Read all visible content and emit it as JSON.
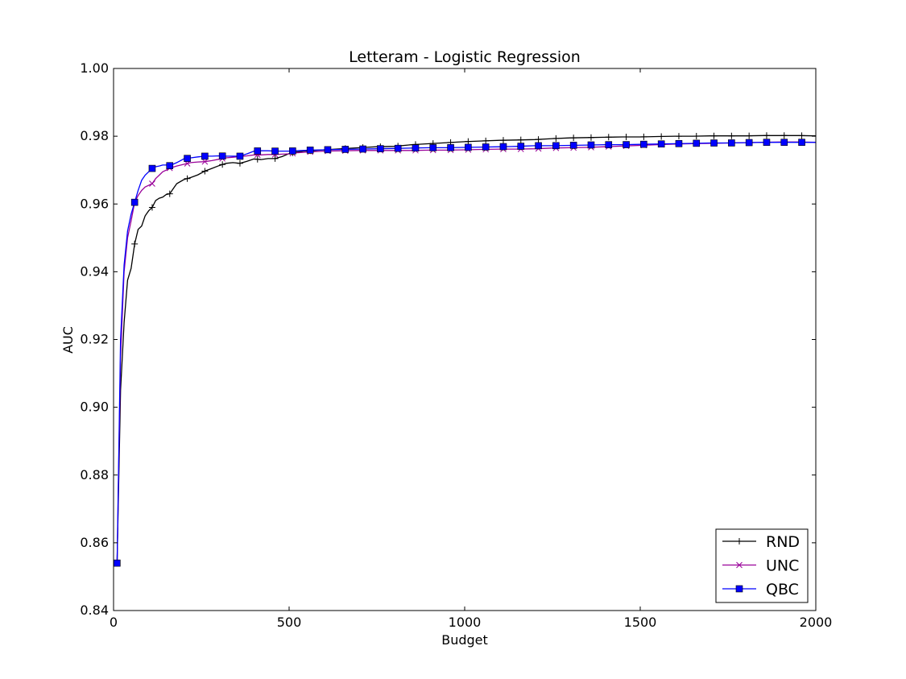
{
  "chart_data": {
    "type": "line",
    "title": "Letteram - Logistic Regression",
    "xlabel": "Budget",
    "ylabel": "AUC",
    "xlim": [
      0,
      2000
    ],
    "ylim": [
      0.84,
      1.0
    ],
    "xticks": [
      0,
      500,
      1000,
      1500,
      2000
    ],
    "yticks": [
      0.84,
      0.86,
      0.88,
      0.9,
      0.92,
      0.94,
      0.96,
      0.98,
      1.0
    ],
    "xtick_labels": [
      "0",
      "500",
      "1000",
      "1500",
      "2000"
    ],
    "ytick_labels": [
      "0.84",
      "0.86",
      "0.88",
      "0.90",
      "0.92",
      "0.94",
      "0.96",
      "0.98",
      "1.00"
    ],
    "grid": false,
    "legend_position": "bottom-right",
    "series": [
      {
        "name": "RND",
        "color": "#000000",
        "marker": "plus",
        "x": [
          10,
          20,
          30,
          40,
          50,
          60,
          70,
          80,
          90,
          100,
          110,
          120,
          130,
          140,
          150,
          160,
          170,
          180,
          200,
          220,
          240,
          260,
          280,
          300,
          320,
          340,
          360,
          380,
          400,
          420,
          440,
          460,
          480,
          500,
          520,
          540,
          560,
          600,
          650,
          700,
          750,
          800,
          850,
          900,
          950,
          1000,
          1050,
          1100,
          1150,
          1200,
          1250,
          1300,
          1350,
          1400,
          1450,
          1500,
          1550,
          1600,
          1650,
          1700,
          1750,
          1800,
          1850,
          1900,
          1950,
          2000
        ],
        "y": [
          0.854,
          0.905,
          0.925,
          0.9375,
          0.941,
          0.9482,
          0.9525,
          0.9535,
          0.9565,
          0.958,
          0.959,
          0.961,
          0.9617,
          0.962,
          0.9628,
          0.963,
          0.9645,
          0.966,
          0.9672,
          0.9678,
          0.9686,
          0.9697,
          0.9705,
          0.9713,
          0.972,
          0.9722,
          0.972,
          0.9726,
          0.9733,
          0.9731,
          0.9734,
          0.9734,
          0.974,
          0.9749,
          0.9753,
          0.9756,
          0.9757,
          0.976,
          0.9763,
          0.9766,
          0.9769,
          0.977,
          0.9775,
          0.9778,
          0.9781,
          0.9784,
          0.9786,
          0.9788,
          0.9789,
          0.979,
          0.9793,
          0.9795,
          0.9796,
          0.9797,
          0.9798,
          0.9798,
          0.9799,
          0.98,
          0.98,
          0.9801,
          0.9801,
          0.9801,
          0.9802,
          0.9802,
          0.9802,
          0.9801
        ]
      },
      {
        "name": "UNC",
        "color": "#990099",
        "marker": "x",
        "x": [
          10,
          20,
          30,
          40,
          50,
          60,
          70,
          80,
          90,
          100,
          110,
          120,
          130,
          140,
          150,
          160,
          180,
          200,
          220,
          240,
          260,
          280,
          300,
          320,
          340,
          360,
          380,
          400,
          420,
          440,
          460,
          480,
          500,
          520,
          560,
          600,
          650,
          700,
          750,
          800,
          850,
          900,
          950,
          1000,
          1050,
          1100,
          1150,
          1200,
          1250,
          1300,
          1350,
          1400,
          1450,
          1500,
          1550,
          1600,
          1650,
          1700,
          1750,
          1800,
          1850,
          1900,
          1950,
          2000
        ],
        "y": [
          0.854,
          0.915,
          0.94,
          0.95,
          0.955,
          0.9605,
          0.9625,
          0.964,
          0.965,
          0.9655,
          0.966,
          0.9675,
          0.9685,
          0.9695,
          0.97,
          0.9706,
          0.9712,
          0.9717,
          0.9722,
          0.9724,
          0.9725,
          0.9728,
          0.9732,
          0.9736,
          0.9738,
          0.974,
          0.9742,
          0.9745,
          0.9745,
          0.9746,
          0.9746,
          0.9747,
          0.9748,
          0.9751,
          0.9754,
          0.9756,
          0.9757,
          0.9758,
          0.9758,
          0.9758,
          0.9758,
          0.9759,
          0.9759,
          0.976,
          0.9761,
          0.9762,
          0.9762,
          0.9763,
          0.9765,
          0.9766,
          0.9767,
          0.9769,
          0.9771,
          0.9773,
          0.9775,
          0.9777,
          0.9778,
          0.9779,
          0.978,
          0.9781,
          0.9782,
          0.9783,
          0.9783,
          0.9782
        ]
      },
      {
        "name": "QBC",
        "color": "#0000ff",
        "marker": "square",
        "x": [
          10,
          20,
          30,
          40,
          50,
          60,
          70,
          80,
          90,
          100,
          110,
          120,
          130,
          140,
          150,
          160,
          180,
          200,
          220,
          240,
          260,
          280,
          300,
          320,
          340,
          360,
          380,
          400,
          420,
          440,
          460,
          480,
          500,
          520,
          560,
          600,
          650,
          700,
          750,
          800,
          850,
          900,
          950,
          1000,
          1050,
          1100,
          1150,
          1200,
          1250,
          1300,
          1350,
          1400,
          1450,
          1500,
          1550,
          1600,
          1650,
          1700,
          1750,
          1800,
          1850,
          1900,
          1950,
          2000
        ],
        "y": [
          0.854,
          0.92,
          0.942,
          0.952,
          0.957,
          0.9605,
          0.964,
          0.967,
          0.9685,
          0.9695,
          0.9705,
          0.971,
          0.9712,
          0.9715,
          0.9715,
          0.9713,
          0.9722,
          0.9733,
          0.9736,
          0.9739,
          0.9741,
          0.9741,
          0.9742,
          0.9741,
          0.9741,
          0.9741,
          0.9748,
          0.9756,
          0.9757,
          0.9757,
          0.9756,
          0.9756,
          0.9756,
          0.9757,
          0.9759,
          0.976,
          0.9761,
          0.9762,
          0.9763,
          0.9764,
          0.9765,
          0.9766,
          0.9766,
          0.9767,
          0.9768,
          0.9769,
          0.977,
          0.9772,
          0.9772,
          0.9773,
          0.9774,
          0.9775,
          0.9775,
          0.9776,
          0.9777,
          0.9778,
          0.9779,
          0.978,
          0.978,
          0.9781,
          0.9782,
          0.9782,
          0.9782,
          0.9782
        ]
      }
    ],
    "marker_x": [
      10,
      60,
      110,
      160,
      210,
      260,
      310,
      360,
      410,
      460,
      510,
      560,
      610,
      660,
      710,
      760,
      810,
      860,
      910,
      960,
      1010,
      1060,
      1110,
      1160,
      1210,
      1260,
      1310,
      1360,
      1410,
      1460,
      1510,
      1560,
      1610,
      1660,
      1710,
      1760,
      1810,
      1860,
      1910,
      1960
    ]
  }
}
